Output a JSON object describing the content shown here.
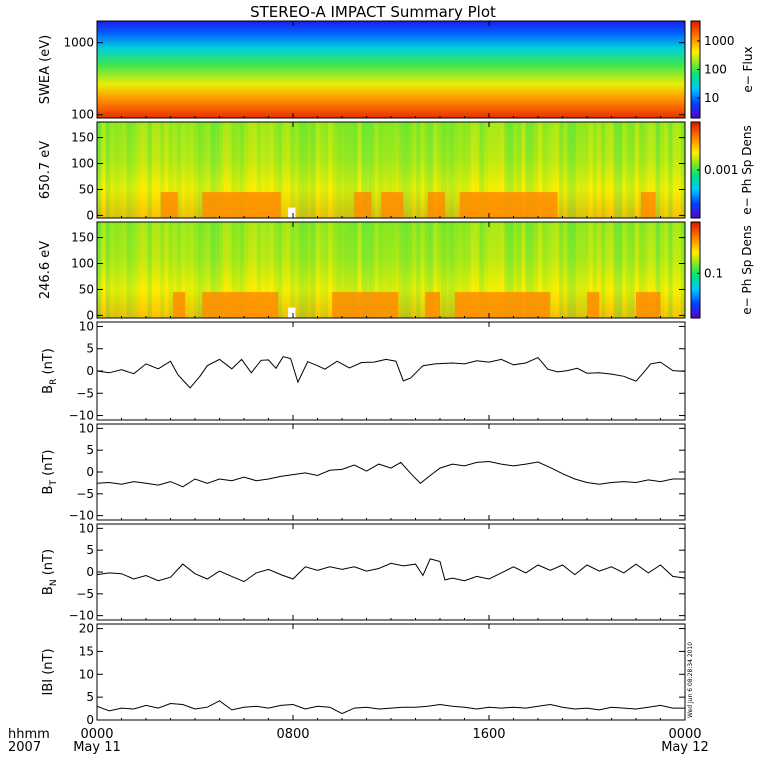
{
  "title": "STEREO-A IMPACT Summary Plot",
  "x_axis": {
    "row1_label": "hhmm",
    "row2_label": "2007",
    "ticks": [
      {
        "hours": 0,
        "label": "0000",
        "sublabel": "May 11"
      },
      {
        "hours": 8,
        "label": "0800",
        "sublabel": ""
      },
      {
        "hours": 16,
        "label": "1600",
        "sublabel": ""
      },
      {
        "hours": 24,
        "label": "0000",
        "sublabel": "May 12"
      }
    ],
    "range_hours": [
      0,
      24
    ]
  },
  "timestamp": "Wed Jun  6 08:28:34 2010",
  "colors": {
    "line": "#000000",
    "frame": "#000000",
    "background": "#ffffff",
    "fill_gap": "#ffffff"
  },
  "chart_data": [
    {
      "type": "heatmap",
      "ylabel": "SWEA (eV)",
      "yscale": "log",
      "ylim": [
        90,
        2000
      ],
      "yticks": [
        {
          "v": 100,
          "label": "100"
        },
        {
          "v": 1000,
          "label": "1000"
        }
      ],
      "colorbar": {
        "label": "e− Flux",
        "scale": "log",
        "ticks": [
          {
            "v": 10,
            "label": "10"
          },
          {
            "v": 100,
            "label": "100"
          },
          {
            "v": 1000,
            "label": "1000"
          }
        ],
        "range": [
          2,
          5000
        ]
      },
      "description_colors": "red at low energy (~100 eV) through yellow/green to blue at highest energy (~2000 eV)"
    },
    {
      "type": "heatmap",
      "ylabel": "650.7 eV",
      "ylim": [
        -5,
        180
      ],
      "yticks": [
        {
          "v": 0,
          "label": "0"
        },
        {
          "v": 50,
          "label": "50"
        },
        {
          "v": 100,
          "label": "100"
        },
        {
          "v": 150,
          "label": "150"
        }
      ],
      "colorbar": {
        "label": "e− Ph Sp Dens",
        "scale": "log",
        "ticks": [
          {
            "v": 0.001,
            "label": "0.001"
          }
        ],
        "range": [
          0.0001,
          0.01
        ]
      },
      "enhanced_intervals_hours": [
        [
          2.6,
          3.3
        ],
        [
          4.3,
          7.5
        ],
        [
          10.5,
          11.2
        ],
        [
          11.6,
          12.5
        ],
        [
          13.5,
          14.2
        ],
        [
          14.8,
          18.8
        ],
        [
          22.2,
          22.8
        ]
      ]
    },
    {
      "type": "heatmap",
      "ylabel": "246.6 eV",
      "ylim": [
        -5,
        180
      ],
      "yticks": [
        {
          "v": 0,
          "label": "0"
        },
        {
          "v": 50,
          "label": "50"
        },
        {
          "v": 100,
          "label": "100"
        },
        {
          "v": 150,
          "label": "150"
        }
      ],
      "colorbar": {
        "label": "e− Ph Sp Dens",
        "scale": "log",
        "ticks": [
          {
            "v": 0.1,
            "label": "0.1"
          }
        ],
        "range": [
          0.03,
          0.4
        ]
      },
      "enhanced_intervals_hours": [
        [
          3.1,
          3.6
        ],
        [
          4.3,
          7.4
        ],
        [
          9.6,
          12.3
        ],
        [
          13.4,
          14.0
        ],
        [
          14.6,
          18.5
        ],
        [
          20.0,
          20.5
        ],
        [
          22.0,
          23.0
        ]
      ]
    },
    {
      "type": "line",
      "ylabel": "B_R (nT)",
      "ylabel_main": "B",
      "ylabel_sub": "R",
      "ylabel_unit": "(nT)",
      "ylim": [
        -11,
        11
      ],
      "yticks": [
        {
          "v": -10,
          "label": "−10"
        },
        {
          "v": -5,
          "label": "−5"
        },
        {
          "v": 0,
          "label": "0"
        },
        {
          "v": 5,
          "label": "5"
        },
        {
          "v": 10,
          "label": "10"
        }
      ],
      "x": [
        0,
        0.5,
        1,
        1.5,
        2,
        2.5,
        3,
        3.3,
        3.8,
        4.2,
        4.5,
        5,
        5.5,
        5.9,
        6.3,
        6.7,
        7,
        7.3,
        7.6,
        7.9,
        8.2,
        8.6,
        9,
        9.3,
        9.8,
        10.3,
        10.8,
        11.3,
        11.8,
        12.2,
        12.5,
        12.8,
        13.3,
        13.8,
        14.5,
        15,
        15.5,
        16,
        16.5,
        17,
        17.5,
        18,
        18.4,
        18.8,
        19.2,
        19.6,
        20,
        20.5,
        21,
        21.5,
        22,
        22.3,
        22.6,
        23,
        23.5,
        24
      ],
      "y": [
        0,
        -0.4,
        0.3,
        -0.6,
        1.6,
        0.5,
        2.2,
        -0.8,
        -3.8,
        -1.2,
        1.2,
        2.6,
        0.5,
        2.6,
        -0.4,
        2.4,
        2.5,
        0.6,
        3.2,
        2.8,
        -2.5,
        2.1,
        1.2,
        0.4,
        2.2,
        0.7,
        1.9,
        2.0,
        2.6,
        2.2,
        -2.2,
        -1.6,
        1.2,
        1.6,
        1.8,
        1.6,
        2.3,
        2.0,
        2.6,
        1.4,
        1.8,
        3.0,
        0.4,
        -0.2,
        0.1,
        0.6,
        -0.5,
        -0.4,
        -0.7,
        -1.2,
        -2.3,
        -0.4,
        1.6,
        2.0,
        0.1,
        -0.1
      ]
    },
    {
      "type": "line",
      "ylabel": "B_T (nT)",
      "ylabel_main": "B",
      "ylabel_sub": "T",
      "ylabel_unit": "(nT)",
      "ylim": [
        -11,
        11
      ],
      "yticks": [
        {
          "v": -10,
          "label": "−10"
        },
        {
          "v": -5,
          "label": "−5"
        },
        {
          "v": 0,
          "label": "0"
        },
        {
          "v": 5,
          "label": "5"
        },
        {
          "v": 10,
          "label": "10"
        }
      ],
      "x": [
        0,
        0.5,
        1,
        1.5,
        2,
        2.5,
        3,
        3.5,
        4,
        4.5,
        5,
        5.5,
        6,
        6.5,
        7,
        7.5,
        8,
        8.5,
        9,
        9.5,
        10,
        10.5,
        11,
        11.5,
        12,
        12.4,
        12.8,
        13.2,
        13.6,
        14,
        14.5,
        15,
        15.5,
        16,
        16.5,
        17,
        17.5,
        18,
        18.5,
        19,
        19.5,
        20,
        20.5,
        21,
        21.5,
        22,
        22.5,
        23,
        23.5,
        24
      ],
      "y": [
        -2.6,
        -2.4,
        -2.8,
        -2.2,
        -2.6,
        -3.0,
        -2.2,
        -3.4,
        -1.6,
        -2.6,
        -1.6,
        -2.0,
        -1.2,
        -2.0,
        -1.6,
        -1.0,
        -0.6,
        -0.2,
        -0.8,
        0.4,
        0.6,
        1.6,
        0.2,
        1.8,
        0.9,
        2.2,
        -0.3,
        -2.6,
        -0.8,
        0.9,
        1.8,
        1.4,
        2.2,
        2.4,
        1.8,
        1.4,
        1.8,
        2.3,
        1.0,
        -0.4,
        -1.6,
        -2.4,
        -2.8,
        -2.4,
        -2.2,
        -2.4,
        -1.8,
        -2.2,
        -1.6,
        -1.6
      ]
    },
    {
      "type": "line",
      "ylabel": "B_N (nT)",
      "ylabel_main": "B",
      "ylabel_sub": "N",
      "ylabel_unit": "(nT)",
      "ylim": [
        -11,
        11
      ],
      "yticks": [
        {
          "v": -10,
          "label": "−10"
        },
        {
          "v": -5,
          "label": "−5"
        },
        {
          "v": 0,
          "label": "0"
        },
        {
          "v": 5,
          "label": "5"
        },
        {
          "v": 10,
          "label": "10"
        }
      ],
      "x": [
        0,
        0.5,
        1,
        1.5,
        2,
        2.5,
        3,
        3.5,
        4,
        4.5,
        5,
        5.5,
        6,
        6.5,
        7,
        7.5,
        8,
        8.5,
        9,
        9.5,
        10,
        10.5,
        11,
        11.5,
        12,
        12.5,
        13,
        13.3,
        13.6,
        14,
        14.2,
        14.5,
        15,
        15.5,
        16,
        16.5,
        17,
        17.5,
        18,
        18.5,
        19,
        19.5,
        20,
        20.5,
        21,
        21.5,
        22,
        22.5,
        23,
        23.5,
        24
      ],
      "y": [
        -0.6,
        -0.2,
        -0.4,
        -1.6,
        -0.8,
        -2.0,
        -1.2,
        1.8,
        -0.4,
        -1.6,
        0.2,
        -1.0,
        -2.2,
        -0.2,
        0.6,
        -0.6,
        -1.6,
        1.2,
        0.4,
        1.2,
        0.6,
        1.2,
        0.2,
        0.8,
        2.0,
        1.4,
        1.8,
        -0.8,
        3.0,
        2.4,
        -1.8,
        -1.4,
        -2.0,
        -1.0,
        -1.6,
        -0.2,
        1.2,
        -0.2,
        1.6,
        0.4,
        1.6,
        -0.6,
        1.6,
        0.2,
        1.2,
        -0.2,
        1.8,
        -0.2,
        1.6,
        -1.0,
        -1.4
      ]
    },
    {
      "type": "line",
      "ylabel": "|B| (nT)",
      "ylabel_display": "IBI (nT)",
      "ylim": [
        0,
        21
      ],
      "yticks": [
        {
          "v": 0,
          "label": "0"
        },
        {
          "v": 5,
          "label": "5"
        },
        {
          "v": 10,
          "label": "10"
        },
        {
          "v": 15,
          "label": "15"
        },
        {
          "v": 20,
          "label": "20"
        }
      ],
      "x": [
        0,
        0.5,
        1,
        1.5,
        2,
        2.5,
        3,
        3.5,
        4,
        4.5,
        5,
        5.5,
        6,
        6.5,
        7,
        7.5,
        8,
        8.5,
        9,
        9.5,
        10,
        10.5,
        11,
        11.5,
        12,
        12.5,
        13,
        13.5,
        14,
        14.5,
        15,
        15.5,
        16,
        16.5,
        17,
        17.5,
        18,
        18.5,
        19,
        19.5,
        20,
        20.5,
        21,
        21.5,
        22,
        22.5,
        23,
        23.5,
        24
      ],
      "y": [
        3.0,
        2.0,
        2.6,
        2.4,
        3.2,
        2.6,
        3.6,
        3.4,
        2.4,
        2.8,
        4.2,
        2.2,
        2.8,
        3.0,
        2.6,
        3.2,
        3.4,
        2.4,
        3.0,
        2.8,
        1.4,
        2.6,
        2.8,
        2.4,
        2.6,
        2.8,
        2.8,
        3.0,
        3.4,
        3.0,
        2.8,
        2.4,
        2.8,
        2.6,
        2.8,
        2.6,
        3.0,
        3.4,
        2.8,
        2.4,
        2.6,
        2.2,
        2.8,
        2.6,
        2.4,
        2.8,
        3.2,
        2.6,
        2.6
      ]
    }
  ]
}
